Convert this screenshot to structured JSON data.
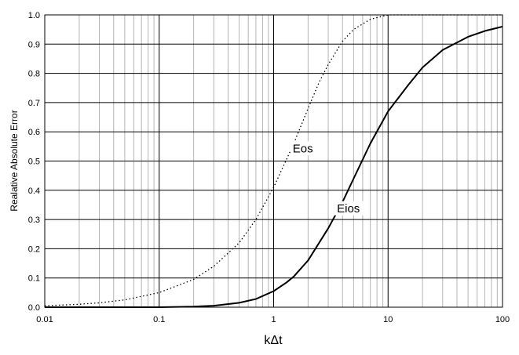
{
  "chart_data": {
    "type": "line",
    "xscale": "log",
    "xlim": [
      0.01,
      100
    ],
    "ylim": [
      0.0,
      1.0
    ],
    "grid": true,
    "xlabel": "kΔt",
    "ylabel": "Realative Absolute Error",
    "xticks": [
      "0.01",
      "0.1",
      "1",
      "10",
      "100"
    ],
    "yticks": [
      "0.0",
      "0.1",
      "0.2",
      "0.3",
      "0.4",
      "0.5",
      "0.6",
      "0.7",
      "0.8",
      "0.9",
      "1.0"
    ],
    "series": [
      {
        "name": "Eos",
        "style": "dotted",
        "color": "#000000",
        "x": [
          0.01,
          0.02,
          0.03,
          0.05,
          0.1,
          0.2,
          0.3,
          0.5,
          0.7,
          1,
          1.5,
          2,
          2.5,
          3,
          4,
          5,
          7,
          10,
          20,
          50,
          100
        ],
        "y": [
          0.005,
          0.01,
          0.015,
          0.025,
          0.05,
          0.095,
          0.14,
          0.22,
          0.3,
          0.41,
          0.56,
          0.68,
          0.77,
          0.83,
          0.91,
          0.95,
          0.985,
          1.0,
          1.0,
          1.0,
          1.0
        ]
      },
      {
        "name": "Eios",
        "style": "solid",
        "color": "#000000",
        "x": [
          0.01,
          0.1,
          0.2,
          0.3,
          0.5,
          0.7,
          1,
          1.3,
          1.5,
          2,
          3,
          4,
          5,
          7,
          10,
          15,
          20,
          30,
          50,
          70,
          100
        ],
        "y": [
          0.0,
          0.0,
          0.002,
          0.005,
          0.015,
          0.028,
          0.055,
          0.085,
          0.105,
          0.16,
          0.27,
          0.36,
          0.44,
          0.56,
          0.67,
          0.76,
          0.82,
          0.88,
          0.925,
          0.945,
          0.96
        ]
      }
    ],
    "annotations": [
      {
        "text": "Eos",
        "x": 1.8,
        "y": 0.53
      },
      {
        "text": "Eios",
        "x": 4.5,
        "y": 0.325
      }
    ]
  }
}
